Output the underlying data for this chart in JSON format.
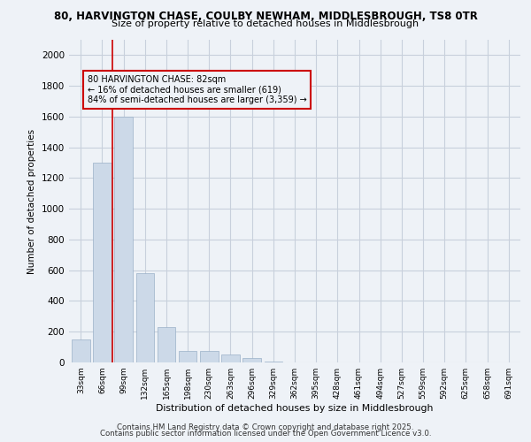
{
  "title1": "80, HARVINGTON CHASE, COULBY NEWHAM, MIDDLESBROUGH, TS8 0TR",
  "title2": "Size of property relative to detached houses in Middlesbrough",
  "xlabel": "Distribution of detached houses by size in Middlesbrough",
  "ylabel": "Number of detached properties",
  "bar_labels": [
    "33sqm",
    "66sqm",
    "99sqm",
    "132sqm",
    "165sqm",
    "198sqm",
    "230sqm",
    "263sqm",
    "296sqm",
    "329sqm",
    "362sqm",
    "395sqm",
    "428sqm",
    "461sqm",
    "494sqm",
    "527sqm",
    "559sqm",
    "592sqm",
    "625sqm",
    "658sqm",
    "691sqm"
  ],
  "bar_values": [
    148,
    1300,
    1600,
    580,
    230,
    75,
    75,
    50,
    30,
    8,
    2,
    0,
    0,
    0,
    0,
    0,
    0,
    0,
    0,
    0,
    0
  ],
  "bar_color": "#ccd9e8",
  "bar_edge_color": "#9ab0c8",
  "ylim": [
    0,
    2100
  ],
  "yticks": [
    0,
    200,
    400,
    600,
    800,
    1000,
    1200,
    1400,
    1600,
    1800,
    2000
  ],
  "vline_x": 1.48,
  "vline_color": "#cc0000",
  "annotation_text": "80 HARVINGTON CHASE: 82sqm\n← 16% of detached houses are smaller (619)\n84% of semi-detached houses are larger (3,359) →",
  "annotation_box_color": "#cc0000",
  "footer1": "Contains HM Land Registry data © Crown copyright and database right 2025.",
  "footer2": "Contains public sector information licensed under the Open Government Licence v3.0.",
  "bg_color": "#eef2f7",
  "grid_color": "#c8d0dc"
}
